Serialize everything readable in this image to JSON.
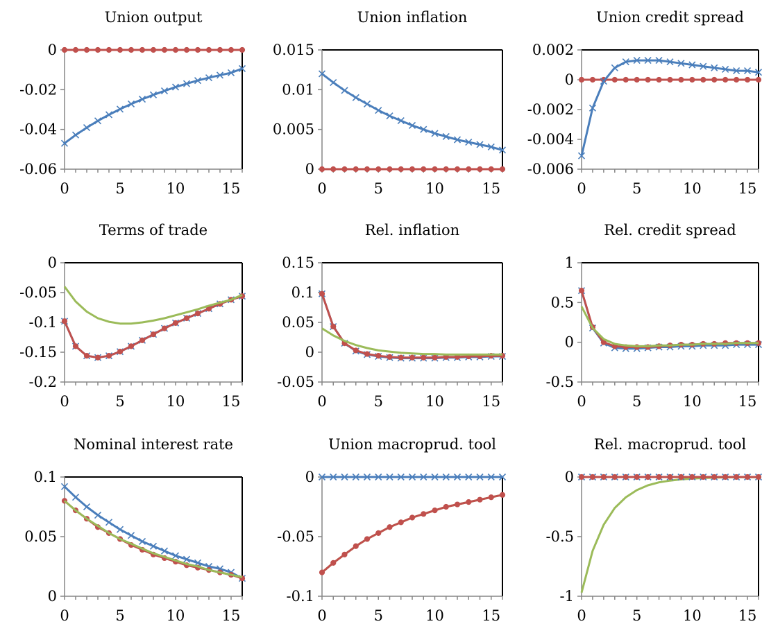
{
  "series_styles": {
    "blue": {
      "color": "#4a7ebb",
      "marker": "x-mark"
    },
    "red": {
      "color": "#c0504d",
      "marker": "circle-marker"
    },
    "green": {
      "color": "#9bbb59",
      "marker": "none"
    }
  },
  "chart_data": [
    {
      "type": "line",
      "title": "Union output",
      "x": [
        0,
        1,
        2,
        3,
        4,
        5,
        6,
        7,
        8,
        9,
        10,
        11,
        12,
        13,
        14,
        15,
        16
      ],
      "ylim": [
        -0.06,
        0
      ],
      "yticks": [
        0,
        -0.02,
        -0.04,
        -0.06
      ],
      "ytick_labels": [
        "0",
        "-0.02",
        "-0.04",
        "-0.06"
      ],
      "xticks": [
        0,
        5,
        10,
        15
      ],
      "xtick_labels": [
        "0",
        "5",
        "10",
        "15"
      ],
      "series": [
        {
          "style": "green",
          "values": [
            0,
            0,
            0,
            0,
            0,
            0,
            0,
            0,
            0,
            0,
            0,
            0,
            0,
            0,
            0,
            0,
            0
          ]
        },
        {
          "style": "red",
          "values": [
            0,
            0,
            0,
            0,
            0,
            0,
            0,
            0,
            0,
            0,
            0,
            0,
            0,
            0,
            0,
            0,
            0
          ]
        },
        {
          "style": "blue",
          "values": [
            -0.047,
            -0.0428,
            -0.0391,
            -0.0357,
            -0.0326,
            -0.0298,
            -0.0272,
            -0.0248,
            -0.0226,
            -0.0206,
            -0.0187,
            -0.017,
            -0.0154,
            -0.014,
            -0.0127,
            -0.0115,
            -0.0094
          ]
        }
      ]
    },
    {
      "type": "line",
      "title": "Union inflation",
      "x": [
        0,
        1,
        2,
        3,
        4,
        5,
        6,
        7,
        8,
        9,
        10,
        11,
        12,
        13,
        14,
        15,
        16
      ],
      "ylim": [
        0,
        0.015
      ],
      "yticks": [
        0.015,
        0.01,
        0.005,
        0
      ],
      "ytick_labels": [
        "0.015",
        "0.01",
        "0.005",
        "0"
      ],
      "xticks": [
        0,
        5,
        10,
        15
      ],
      "xtick_labels": [
        "0",
        "5",
        "10",
        "15"
      ],
      "series": [
        {
          "style": "green",
          "values": [
            0,
            0,
            0,
            0,
            0,
            0,
            0,
            0,
            0,
            0,
            0,
            0,
            0,
            0,
            0,
            0,
            0
          ]
        },
        {
          "style": "red",
          "values": [
            0,
            0,
            0,
            0,
            0,
            0,
            0,
            0,
            0,
            0,
            0,
            0,
            0,
            0,
            0,
            0,
            0
          ]
        },
        {
          "style": "blue",
          "values": [
            0.012,
            0.0109,
            0.0099,
            0.009,
            0.0082,
            0.0074,
            0.0067,
            0.0061,
            0.0055,
            0.005,
            0.0045,
            0.0041,
            0.0037,
            0.0034,
            0.0031,
            0.0028,
            0.0024
          ]
        }
      ]
    },
    {
      "type": "line",
      "title": "Union credit spread",
      "x": [
        0,
        1,
        2,
        3,
        4,
        5,
        6,
        7,
        8,
        9,
        10,
        11,
        12,
        13,
        14,
        15,
        16
      ],
      "ylim": [
        -0.006,
        0.002
      ],
      "yticks": [
        0.002,
        0,
        -0.002,
        -0.004,
        -0.006
      ],
      "ytick_labels": [
        "0.002",
        "0",
        "-0.002",
        "-0.004",
        "-0.006"
      ],
      "xticks": [
        0,
        5,
        10,
        15
      ],
      "xtick_labels": [
        "0",
        "5",
        "10",
        "15"
      ],
      "series": [
        {
          "style": "green",
          "values": [
            0,
            0,
            0,
            0,
            0,
            0,
            0,
            0,
            0,
            0,
            0,
            0,
            0,
            0,
            0,
            0,
            0
          ]
        },
        {
          "style": "red",
          "values": [
            0,
            0,
            0,
            0,
            0,
            0,
            0,
            0,
            0,
            0,
            0,
            0,
            0,
            0,
            0,
            0,
            0
          ]
        },
        {
          "style": "blue",
          "values": [
            -0.0051,
            -0.0019,
            -0.0001,
            0.0008,
            0.0012,
            0.0013,
            0.0013,
            0.0013,
            0.0012,
            0.0011,
            0.001,
            0.0009,
            0.0008,
            0.0007,
            0.0006,
            0.0006,
            0.0005
          ]
        }
      ]
    },
    {
      "type": "line",
      "title": "Terms of trade",
      "x": [
        0,
        1,
        2,
        3,
        4,
        5,
        6,
        7,
        8,
        9,
        10,
        11,
        12,
        13,
        14,
        15,
        16
      ],
      "ylim": [
        -0.2,
        0
      ],
      "yticks": [
        0,
        -0.05,
        -0.1,
        -0.15,
        -0.2
      ],
      "ytick_labels": [
        "0",
        "-0.05",
        "-0.1",
        "-0.15",
        "-0.2"
      ],
      "xticks": [
        0,
        5,
        10,
        15
      ],
      "xtick_labels": [
        "0",
        "5",
        "10",
        "15"
      ],
      "series": [
        {
          "style": "blue",
          "values": [
            -0.098,
            -0.14,
            -0.156,
            -0.159,
            -0.156,
            -0.149,
            -0.14,
            -0.13,
            -0.12,
            -0.11,
            -0.101,
            -0.093,
            -0.085,
            -0.077,
            -0.069,
            -0.062,
            -0.056
          ]
        },
        {
          "style": "red",
          "values": [
            -0.098,
            -0.14,
            -0.156,
            -0.159,
            -0.156,
            -0.149,
            -0.14,
            -0.13,
            -0.12,
            -0.11,
            -0.101,
            -0.093,
            -0.085,
            -0.077,
            -0.069,
            -0.062,
            -0.056
          ]
        },
        {
          "style": "green",
          "values": [
            -0.04,
            -0.065,
            -0.082,
            -0.093,
            -0.099,
            -0.102,
            -0.102,
            -0.1,
            -0.097,
            -0.093,
            -0.088,
            -0.083,
            -0.078,
            -0.072,
            -0.067,
            -0.062,
            -0.054
          ]
        }
      ]
    },
    {
      "type": "line",
      "title": "Rel. inflation",
      "x": [
        0,
        1,
        2,
        3,
        4,
        5,
        6,
        7,
        8,
        9,
        10,
        11,
        12,
        13,
        14,
        15,
        16
      ],
      "ylim": [
        -0.05,
        0.15
      ],
      "yticks": [
        0.15,
        0.1,
        0.05,
        0,
        -0.05
      ],
      "ytick_labels": [
        "0.15",
        "0.1",
        "0.05",
        "0",
        "-0.05"
      ],
      "xticks": [
        0,
        5,
        10,
        15
      ],
      "xtick_labels": [
        "0",
        "5",
        "10",
        "15"
      ],
      "series": [
        {
          "style": "blue",
          "values": [
            0.098,
            0.043,
            0.015,
            0.002,
            -0.004,
            -0.007,
            -0.009,
            -0.01,
            -0.01,
            -0.01,
            -0.01,
            -0.009,
            -0.009,
            -0.008,
            -0.008,
            -0.007,
            -0.007
          ]
        },
        {
          "style": "red",
          "values": [
            0.098,
            0.043,
            0.015,
            0.003,
            -0.003,
            -0.006,
            -0.008,
            -0.009,
            -0.009,
            -0.009,
            -0.009,
            -0.008,
            -0.008,
            -0.007,
            -0.007,
            -0.006,
            -0.006
          ]
        },
        {
          "style": "green",
          "values": [
            0.04,
            0.028,
            0.019,
            0.012,
            0.007,
            0.003,
            0.001,
            -0.001,
            -0.002,
            -0.003,
            -0.003,
            -0.004,
            -0.004,
            -0.004,
            -0.004,
            -0.004,
            -0.004
          ]
        }
      ]
    },
    {
      "type": "line",
      "title": "Rel. credit spread",
      "x": [
        0,
        1,
        2,
        3,
        4,
        5,
        6,
        7,
        8,
        9,
        10,
        11,
        12,
        13,
        14,
        15,
        16
      ],
      "ylim": [
        -0.5,
        1
      ],
      "yticks": [
        1,
        0.5,
        0,
        -0.5
      ],
      "ytick_labels": [
        "1",
        "0.5",
        "0",
        "-0.5"
      ],
      "xticks": [
        0,
        5,
        10,
        15
      ],
      "xtick_labels": [
        "0",
        "5",
        "10",
        "15"
      ],
      "series": [
        {
          "style": "blue",
          "values": [
            0.65,
            0.18,
            -0.01,
            -0.07,
            -0.08,
            -0.08,
            -0.07,
            -0.06,
            -0.06,
            -0.05,
            -0.05,
            -0.04,
            -0.04,
            -0.04,
            -0.03,
            -0.03,
            -0.03
          ]
        },
        {
          "style": "red",
          "values": [
            0.65,
            0.19,
            0.0,
            -0.05,
            -0.06,
            -0.06,
            -0.06,
            -0.05,
            -0.04,
            -0.03,
            -0.03,
            -0.02,
            -0.02,
            -0.01,
            -0.01,
            -0.01,
            -0.01
          ]
        },
        {
          "style": "green",
          "values": [
            0.45,
            0.18,
            0.04,
            -0.02,
            -0.04,
            -0.05,
            -0.05,
            -0.04,
            -0.04,
            -0.03,
            -0.03,
            -0.02,
            -0.02,
            -0.02,
            -0.01,
            -0.01,
            -0.01
          ]
        }
      ]
    },
    {
      "type": "line",
      "title": "Nominal interest rate",
      "x": [
        0,
        1,
        2,
        3,
        4,
        5,
        6,
        7,
        8,
        9,
        10,
        11,
        12,
        13,
        14,
        15,
        16
      ],
      "ylim": [
        0,
        0.1
      ],
      "yticks": [
        0.1,
        0.05,
        0
      ],
      "ytick_labels": [
        "0.1",
        "0.05",
        "0"
      ],
      "xticks": [
        0,
        5,
        10,
        15
      ],
      "xtick_labels": [
        "0",
        "5",
        "10",
        "15"
      ],
      "series": [
        {
          "style": "blue",
          "values": [
            0.092,
            0.083,
            0.075,
            0.068,
            0.062,
            0.056,
            0.051,
            0.046,
            0.042,
            0.038,
            0.034,
            0.031,
            0.028,
            0.025,
            0.023,
            0.02,
            0.015
          ]
        },
        {
          "style": "red",
          "values": [
            0.08,
            0.072,
            0.065,
            0.058,
            0.053,
            0.048,
            0.043,
            0.039,
            0.035,
            0.032,
            0.029,
            0.026,
            0.024,
            0.022,
            0.02,
            0.018,
            0.015
          ]
        },
        {
          "style": "green",
          "values": [
            0.08,
            0.072,
            0.065,
            0.059,
            0.053,
            0.048,
            0.044,
            0.04,
            0.036,
            0.033,
            0.03,
            0.027,
            0.025,
            0.022,
            0.02,
            0.018,
            0.016
          ]
        }
      ]
    },
    {
      "type": "line",
      "title": "Union macroprud. tool",
      "x": [
        0,
        1,
        2,
        3,
        4,
        5,
        6,
        7,
        8,
        9,
        10,
        11,
        12,
        13,
        14,
        15,
        16
      ],
      "ylim": [
        -0.1,
        0
      ],
      "yticks": [
        0,
        -0.05,
        -0.1
      ],
      "ytick_labels": [
        "0",
        "-0.05",
        "-0.1"
      ],
      "xticks": [
        0,
        5,
        10,
        15
      ],
      "xtick_labels": [
        "0",
        "5",
        "10",
        "15"
      ],
      "series": [
        {
          "style": "blue",
          "values": [
            0,
            0,
            0,
            0,
            0,
            0,
            0,
            0,
            0,
            0,
            0,
            0,
            0,
            0,
            0,
            0,
            0
          ]
        },
        {
          "style": "green",
          "values": [
            -0.08,
            -0.072,
            -0.065,
            -0.058,
            -0.052,
            -0.047,
            -0.042,
            -0.038,
            -0.034,
            -0.031,
            -0.028,
            -0.025,
            -0.023,
            -0.021,
            -0.019,
            -0.017,
            -0.015
          ]
        },
        {
          "style": "red",
          "values": [
            -0.08,
            -0.072,
            -0.065,
            -0.058,
            -0.052,
            -0.047,
            -0.042,
            -0.038,
            -0.034,
            -0.031,
            -0.028,
            -0.025,
            -0.023,
            -0.021,
            -0.019,
            -0.017,
            -0.015
          ]
        }
      ]
    },
    {
      "type": "line",
      "title": "Rel. macroprud. tool",
      "x": [
        0,
        1,
        2,
        3,
        4,
        5,
        6,
        7,
        8,
        9,
        10,
        11,
        12,
        13,
        14,
        15,
        16
      ],
      "ylim": [
        -1,
        0
      ],
      "yticks": [
        0,
        -0.5,
        -1
      ],
      "ytick_labels": [
        "0",
        "-0.5",
        "-1"
      ],
      "xticks": [
        0,
        5,
        10,
        15
      ],
      "xtick_labels": [
        "0",
        "5",
        "10",
        "15"
      ],
      "series": [
        {
          "style": "green",
          "values": [
            -0.97,
            -0.62,
            -0.4,
            -0.26,
            -0.17,
            -0.11,
            -0.07,
            -0.045,
            -0.03,
            -0.02,
            -0.013,
            -0.008,
            -0.005,
            -0.003,
            -0.002,
            -0.001,
            -0.001
          ]
        },
        {
          "style": "blue",
          "values": [
            0,
            0,
            0,
            0,
            0,
            0,
            0,
            0,
            0,
            0,
            0,
            0,
            0,
            0,
            0,
            0,
            0
          ]
        },
        {
          "style": "red",
          "values": [
            0,
            0,
            0,
            0,
            0,
            0,
            0,
            0,
            0,
            0,
            0,
            0,
            0,
            0,
            0,
            0,
            0
          ]
        }
      ]
    }
  ]
}
